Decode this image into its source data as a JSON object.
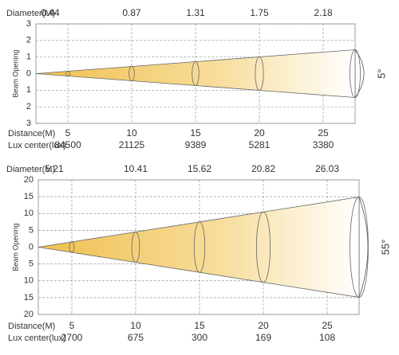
{
  "panels": [
    {
      "diameter_label": "Diameter(M)",
      "diameters": [
        "0.44",
        "0.87",
        "1.31",
        "1.75",
        "2.18"
      ],
      "axis_label": "Beam Opening",
      "yticks": [
        "3",
        "2",
        "1",
        "0",
        "1",
        "2",
        "3"
      ],
      "distance_label": "Distance(M)",
      "distances": [
        "5",
        "10",
        "15",
        "20",
        "25"
      ],
      "lux_label": "Lux center(lux)",
      "lux": [
        "84500",
        "21125",
        "9389",
        "5281",
        "3380"
      ],
      "angle": "5°"
    },
    {
      "diameter_label": "Diameter(M)",
      "diameters": [
        "5.21",
        "10.41",
        "15.62",
        "20.82",
        "26.03"
      ],
      "axis_label": "Beam Opening",
      "yticks": [
        "20",
        "15",
        "10",
        "5",
        "0",
        "5",
        "10",
        "15",
        "20"
      ],
      "distance_label": "Distance(M)",
      "distances": [
        "5",
        "10",
        "15",
        "20",
        "25"
      ],
      "lux_label": "Lux center(lux)",
      "lux": [
        "2700",
        "675",
        "300",
        "169",
        "108"
      ],
      "angle": "55°"
    }
  ]
}
